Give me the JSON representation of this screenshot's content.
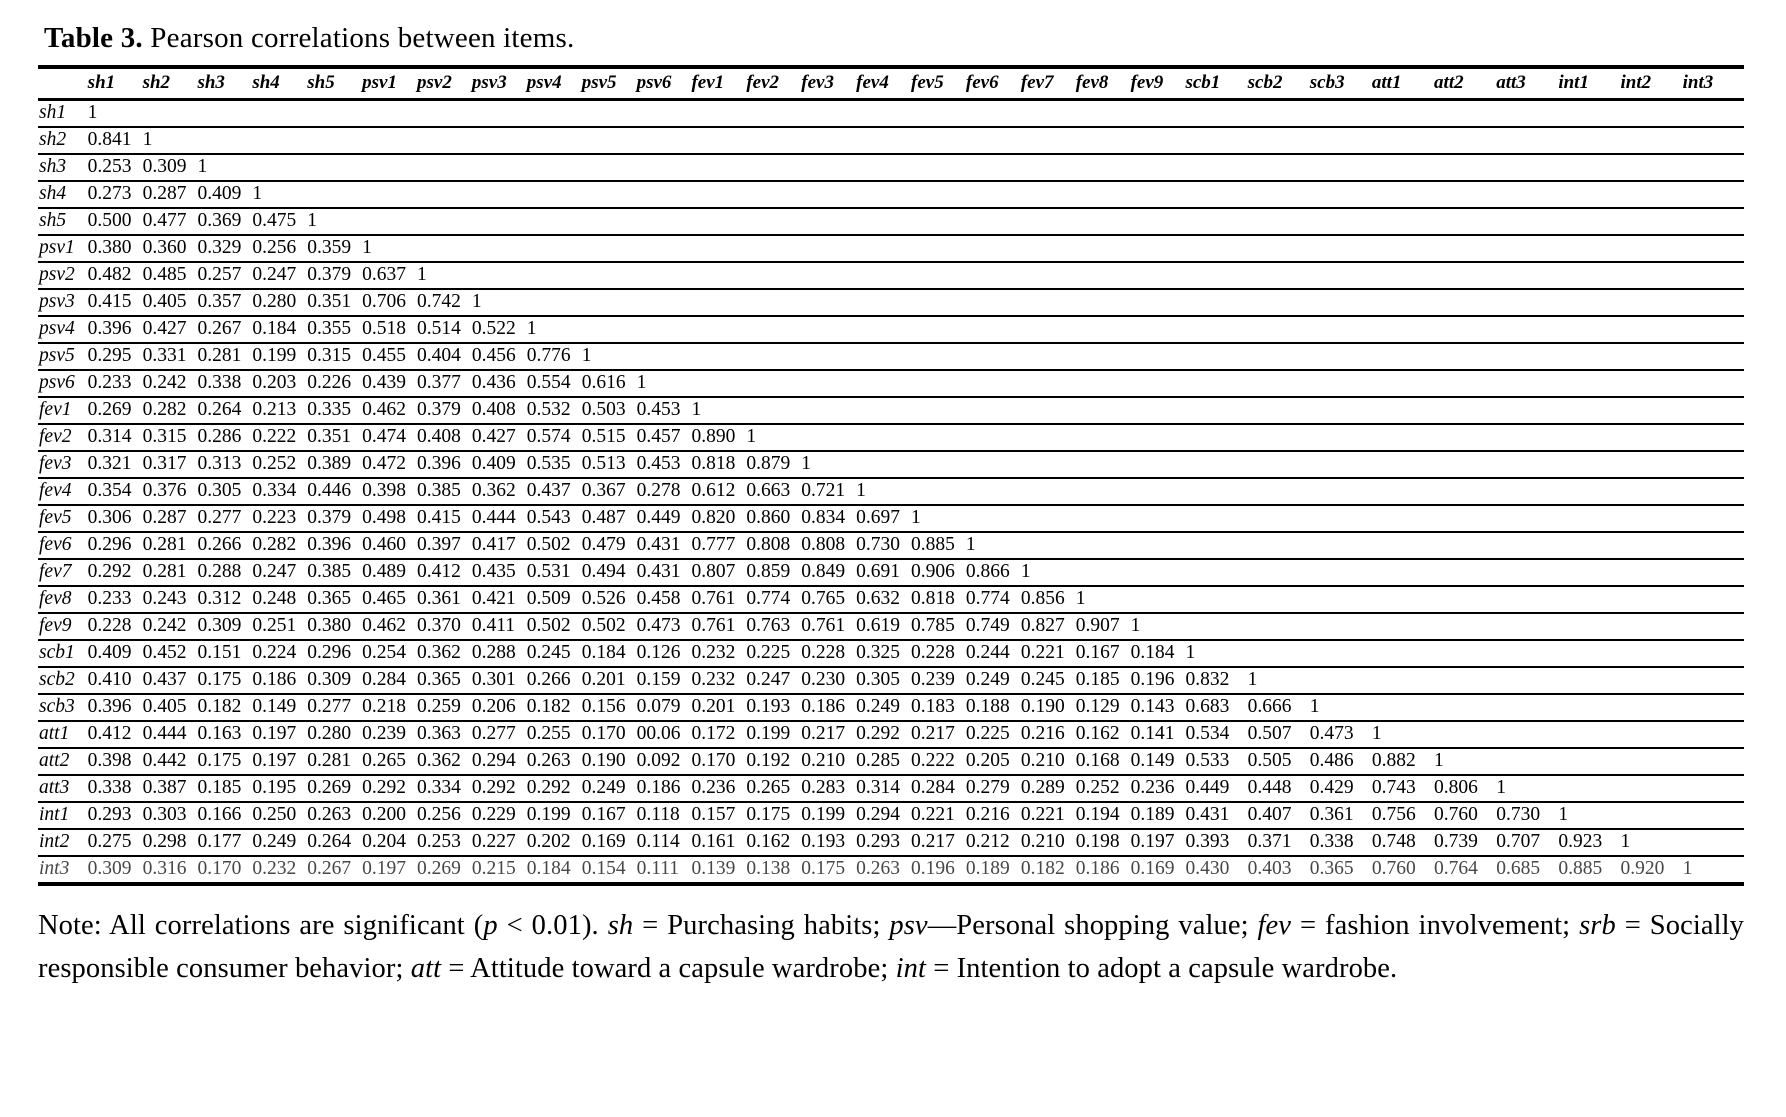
{
  "title": {
    "label": "Table 3.",
    "text": " Pearson correlations between items."
  },
  "table": {
    "columns": [
      "sh1",
      "sh2",
      "sh3",
      "sh4",
      "sh5",
      "psv1",
      "psv2",
      "psv3",
      "psv4",
      "psv5",
      "psv6",
      "fev1",
      "fev2",
      "fev3",
      "fev4",
      "fev5",
      "fev6",
      "fev7",
      "fev8",
      "fev9",
      "scb1",
      "scb2",
      "scb3",
      "att1",
      "att2",
      "att3",
      "int1",
      "int2",
      "int3"
    ],
    "rows": [
      {
        "label": "sh1",
        "values": [
          "1"
        ]
      },
      {
        "label": "sh2",
        "values": [
          "0.841",
          "1"
        ]
      },
      {
        "label": "sh3",
        "values": [
          "0.253",
          "0.309",
          "1"
        ]
      },
      {
        "label": "sh4",
        "values": [
          "0.273",
          "0.287",
          "0.409",
          "1"
        ]
      },
      {
        "label": "sh5",
        "values": [
          "0.500",
          "0.477",
          "0.369",
          "0.475",
          "1"
        ]
      },
      {
        "label": "psv1",
        "values": [
          "0.380",
          "0.360",
          "0.329",
          "0.256",
          "0.359",
          "1"
        ]
      },
      {
        "label": "psv2",
        "values": [
          "0.482",
          "0.485",
          "0.257",
          "0.247",
          "0.379",
          "0.637",
          "1"
        ]
      },
      {
        "label": "psv3",
        "values": [
          "0.415",
          "0.405",
          "0.357",
          "0.280",
          "0.351",
          "0.706",
          "0.742",
          "1"
        ]
      },
      {
        "label": "psv4",
        "values": [
          "0.396",
          "0.427",
          "0.267",
          "0.184",
          "0.355",
          "0.518",
          "0.514",
          "0.522",
          "1"
        ]
      },
      {
        "label": "psv5",
        "values": [
          "0.295",
          "0.331",
          "0.281",
          "0.199",
          "0.315",
          "0.455",
          "0.404",
          "0.456",
          "0.776",
          "1"
        ]
      },
      {
        "label": "psv6",
        "values": [
          "0.233",
          "0.242",
          "0.338",
          "0.203",
          "0.226",
          "0.439",
          "0.377",
          "0.436",
          "0.554",
          "0.616",
          "1"
        ]
      },
      {
        "label": "fev1",
        "values": [
          "0.269",
          "0.282",
          "0.264",
          "0.213",
          "0.335",
          "0.462",
          "0.379",
          "0.408",
          "0.532",
          "0.503",
          "0.453",
          "1"
        ]
      },
      {
        "label": "fev2",
        "values": [
          "0.314",
          "0.315",
          "0.286",
          "0.222",
          "0.351",
          "0.474",
          "0.408",
          "0.427",
          "0.574",
          "0.515",
          "0.457",
          "0.890",
          "1"
        ]
      },
      {
        "label": "fev3",
        "values": [
          "0.321",
          "0.317",
          "0.313",
          "0.252",
          "0.389",
          "0.472",
          "0.396",
          "0.409",
          "0.535",
          "0.513",
          "0.453",
          "0.818",
          "0.879",
          "1"
        ]
      },
      {
        "label": "fev4",
        "values": [
          "0.354",
          "0.376",
          "0.305",
          "0.334",
          "0.446",
          "0.398",
          "0.385",
          "0.362",
          "0.437",
          "0.367",
          "0.278",
          "0.612",
          "0.663",
          "0.721",
          "1"
        ]
      },
      {
        "label": "fev5",
        "values": [
          "0.306",
          "0.287",
          "0.277",
          "0.223",
          "0.379",
          "0.498",
          "0.415",
          "0.444",
          "0.543",
          "0.487",
          "0.449",
          "0.820",
          "0.860",
          "0.834",
          "0.697",
          "1"
        ]
      },
      {
        "label": "fev6",
        "values": [
          "0.296",
          "0.281",
          "0.266",
          "0.282",
          "0.396",
          "0.460",
          "0.397",
          "0.417",
          "0.502",
          "0.479",
          "0.431",
          "0.777",
          "0.808",
          "0.808",
          "0.730",
          "0.885",
          "1"
        ]
      },
      {
        "label": "fev7",
        "values": [
          "0.292",
          "0.281",
          "0.288",
          "0.247",
          "0.385",
          "0.489",
          "0.412",
          "0.435",
          "0.531",
          "0.494",
          "0.431",
          "0.807",
          "0.859",
          "0.849",
          "0.691",
          "0.906",
          "0.866",
          "1"
        ]
      },
      {
        "label": "fev8",
        "values": [
          "0.233",
          "0.243",
          "0.312",
          "0.248",
          "0.365",
          "0.465",
          "0.361",
          "0.421",
          "0.509",
          "0.526",
          "0.458",
          "0.761",
          "0.774",
          "0.765",
          "0.632",
          "0.818",
          "0.774",
          "0.856",
          "1"
        ]
      },
      {
        "label": "fev9",
        "values": [
          "0.228",
          "0.242",
          "0.309",
          "0.251",
          "0.380",
          "0.462",
          "0.370",
          "0.411",
          "0.502",
          "0.502",
          "0.473",
          "0.761",
          "0.763",
          "0.761",
          "0.619",
          "0.785",
          "0.749",
          "0.827",
          "0.907",
          "1"
        ]
      },
      {
        "label": "scb1",
        "values": [
          "0.409",
          "0.452",
          "0.151",
          "0.224",
          "0.296",
          "0.254",
          "0.362",
          "0.288",
          "0.245",
          "0.184",
          "0.126",
          "0.232",
          "0.225",
          "0.228",
          "0.325",
          "0.228",
          "0.244",
          "0.221",
          "0.167",
          "0.184",
          "1"
        ]
      },
      {
        "label": "scb2",
        "values": [
          "0.410",
          "0.437",
          "0.175",
          "0.186",
          "0.309",
          "0.284",
          "0.365",
          "0.301",
          "0.266",
          "0.201",
          "0.159",
          "0.232",
          "0.247",
          "0.230",
          "0.305",
          "0.239",
          "0.249",
          "0.245",
          "0.185",
          "0.196",
          "0.832",
          "1"
        ]
      },
      {
        "label": "scb3",
        "values": [
          "0.396",
          "0.405",
          "0.182",
          "0.149",
          "0.277",
          "0.218",
          "0.259",
          "0.206",
          "0.182",
          "0.156",
          "0.079",
          "0.201",
          "0.193",
          "0.186",
          "0.249",
          "0.183",
          "0.188",
          "0.190",
          "0.129",
          "0.143",
          "0.683",
          "0.666",
          "1"
        ]
      },
      {
        "label": "att1",
        "values": [
          "0.412",
          "0.444",
          "0.163",
          "0.197",
          "0.280",
          "0.239",
          "0.363",
          "0.277",
          "0.255",
          "0.170",
          "00.06",
          "0.172",
          "0.199",
          "0.217",
          "0.292",
          "0.217",
          "0.225",
          "0.216",
          "0.162",
          "0.141",
          "0.534",
          "0.507",
          "0.473",
          "1"
        ]
      },
      {
        "label": "att2",
        "values": [
          "0.398",
          "0.442",
          "0.175",
          "0.197",
          "0.281",
          "0.265",
          "0.362",
          "0.294",
          "0.263",
          "0.190",
          "0.092",
          "0.170",
          "0.192",
          "0.210",
          "0.285",
          "0.222",
          "0.205",
          "0.210",
          "0.168",
          "0.149",
          "0.533",
          "0.505",
          "0.486",
          "0.882",
          "1"
        ]
      },
      {
        "label": "att3",
        "values": [
          "0.338",
          "0.387",
          "0.185",
          "0.195",
          "0.269",
          "0.292",
          "0.334",
          "0.292",
          "0.292",
          "0.249",
          "0.186",
          "0.236",
          "0.265",
          "0.283",
          "0.314",
          "0.284",
          "0.279",
          "0.289",
          "0.252",
          "0.236",
          "0.449",
          "0.448",
          "0.429",
          "0.743",
          "0.806",
          "1"
        ]
      },
      {
        "label": "int1",
        "values": [
          "0.293",
          "0.303",
          "0.166",
          "0.250",
          "0.263",
          "0.200",
          "0.256",
          "0.229",
          "0.199",
          "0.167",
          "0.118",
          "0.157",
          "0.175",
          "0.199",
          "0.294",
          "0.221",
          "0.216",
          "0.221",
          "0.194",
          "0.189",
          "0.431",
          "0.407",
          "0.361",
          "0.756",
          "0.760",
          "0.730",
          "1"
        ]
      },
      {
        "label": "int2",
        "values": [
          "0.275",
          "0.298",
          "0.177",
          "0.249",
          "0.264",
          "0.204",
          "0.253",
          "0.227",
          "0.202",
          "0.169",
          "0.114",
          "0.161",
          "0.162",
          "0.193",
          "0.293",
          "0.217",
          "0.212",
          "0.210",
          "0.198",
          "0.197",
          "0.393",
          "0.371",
          "0.338",
          "0.748",
          "0.739",
          "0.707",
          "0.923",
          "1"
        ]
      },
      {
        "label": "int3",
        "muted": true,
        "values": [
          "0.309",
          "0.316",
          "0.170",
          "0.232",
          "0.267",
          "0.197",
          "0.269",
          "0.215",
          "0.184",
          "0.154",
          "0.111",
          "0.139",
          "0.138",
          "0.175",
          "0.263",
          "0.196",
          "0.189",
          "0.182",
          "0.186",
          "0.169",
          "0.430",
          "0.403",
          "0.365",
          "0.760",
          "0.764",
          "0.685",
          "0.885",
          "0.920",
          "1"
        ]
      }
    ]
  },
  "note": {
    "segments": [
      {
        "text": "Note: All correlations are significant (",
        "italic": false
      },
      {
        "text": "p",
        "italic": true
      },
      {
        "text": " < 0.01). ",
        "italic": false
      },
      {
        "text": "sh",
        "italic": true
      },
      {
        "text": " = Purchasing habits; ",
        "italic": false
      },
      {
        "text": "psv",
        "italic": true
      },
      {
        "text": "—Personal shopping value; ",
        "italic": false
      },
      {
        "text": "fev",
        "italic": true
      },
      {
        "text": " = fashion involvement; ",
        "italic": false
      },
      {
        "text": "srb",
        "italic": true
      },
      {
        "text": " = Socially responsible consumer behavior; ",
        "italic": false
      },
      {
        "text": "att",
        "italic": true
      },
      {
        "text": " = Attitude toward a capsule wardrobe; ",
        "italic": false
      },
      {
        "text": "int",
        "italic": true
      },
      {
        "text": " = Intention to adopt a capsule wardrobe.",
        "italic": false
      }
    ]
  }
}
